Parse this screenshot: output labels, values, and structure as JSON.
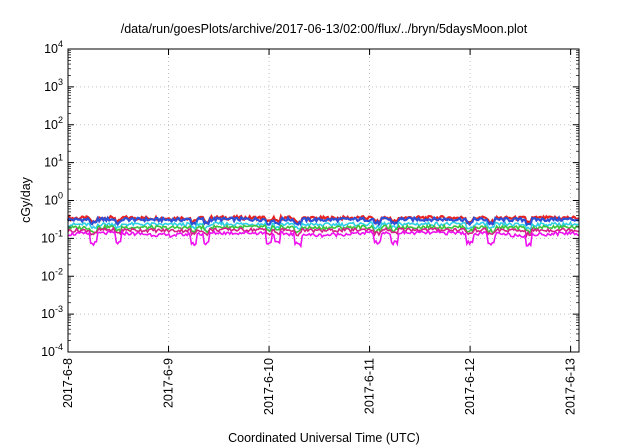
{
  "chart_data": {
    "type": "line",
    "title": "/data/run/goesPlots/archive/2017-06-13/02:00/flux/../bryn/5daysMoon.plot",
    "xlabel": "Coordinated Universal Time (UTC)",
    "ylabel": "cGy/day",
    "y_scale": "log",
    "ylim": [
      0.0001,
      10000
    ],
    "x_range": [
      "2017-06-08",
      "2017-06-13 02:00"
    ],
    "x_ticks": [
      "2017-6-8",
      "2017-6-9",
      "2017-6-10",
      "2017-6-11",
      "2017-6-12",
      "2017-6-13"
    ],
    "y_ticks": [
      {
        "base": "10",
        "exp": "4"
      },
      {
        "base": "10",
        "exp": "3"
      },
      {
        "base": "10",
        "exp": "2"
      },
      {
        "base": "10",
        "exp": "1"
      },
      {
        "base": "10",
        "exp": "0"
      },
      {
        "base": "10",
        "exp": "-1"
      },
      {
        "base": "10",
        "exp": "-2"
      },
      {
        "base": "10",
        "exp": "-3"
      },
      {
        "base": "10",
        "exp": "-4"
      }
    ],
    "grid": true,
    "x_hours": [
      0,
      12,
      24,
      36,
      48,
      60,
      72,
      84,
      96,
      108,
      120,
      122
    ],
    "series": [
      {
        "color": "#e8231f",
        "values": [
          0.34,
          0.35,
          0.34,
          0.35,
          0.35,
          0.34,
          0.35,
          0.35,
          0.35,
          0.34,
          0.35,
          0.34
        ]
      },
      {
        "color": "#2d4fd6",
        "values": [
          0.31,
          0.32,
          0.31,
          0.32,
          0.32,
          0.31,
          0.32,
          0.32,
          0.32,
          0.31,
          0.32,
          0.31
        ]
      },
      {
        "color": "#2ecfe6",
        "values": [
          0.23,
          0.24,
          0.23,
          0.24,
          0.24,
          0.23,
          0.24,
          0.24,
          0.24,
          0.23,
          0.24,
          0.23
        ]
      },
      {
        "color": "#3cc43c",
        "values": [
          0.19,
          0.2,
          0.19,
          0.2,
          0.2,
          0.19,
          0.2,
          0.2,
          0.2,
          0.19,
          0.2,
          0.19
        ]
      },
      {
        "color": "#d61f8a",
        "values": [
          0.16,
          0.17,
          0.16,
          0.17,
          0.17,
          0.16,
          0.17,
          0.17,
          0.17,
          0.16,
          0.17,
          0.16
        ]
      },
      {
        "color": "#ee10ee",
        "values": [
          0.13,
          0.14,
          0.12,
          0.14,
          0.14,
          0.12,
          0.14,
          0.14,
          0.14,
          0.12,
          0.14,
          0.13
        ]
      }
    ]
  }
}
